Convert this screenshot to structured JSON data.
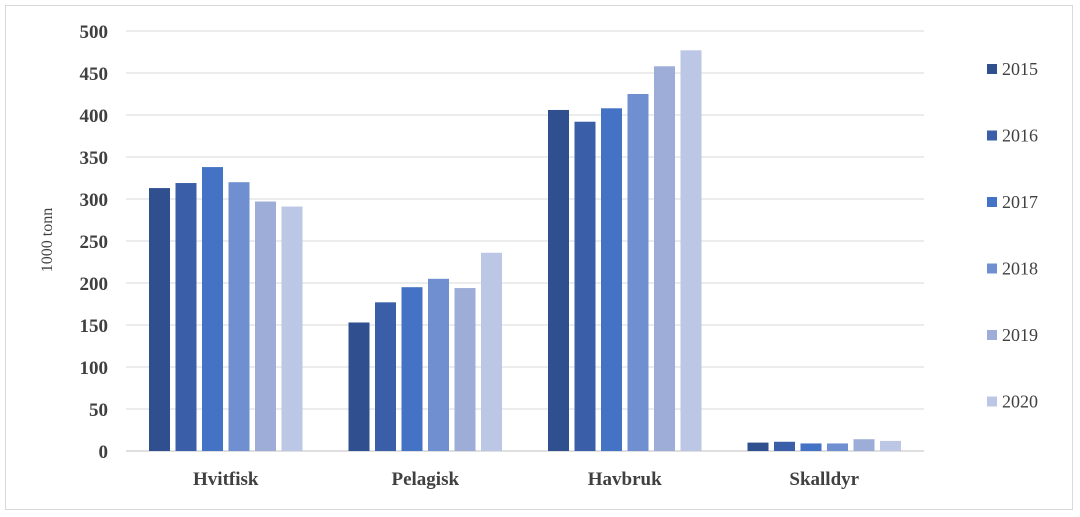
{
  "chart_data": {
    "type": "bar",
    "ylabel": "1000 tonn",
    "xlabel": "",
    "ylim": [
      0,
      500
    ],
    "yticks": [
      0,
      50,
      100,
      150,
      200,
      250,
      300,
      350,
      400,
      450,
      500
    ],
    "grid": true,
    "legend_position": "right",
    "categories": [
      "Hvitfisk",
      "Pelagisk",
      "Havbruk",
      "Skalldyr"
    ],
    "series": [
      {
        "name": "2015",
        "color": "#2f4f8f",
        "values": [
          313,
          153,
          406,
          10
        ]
      },
      {
        "name": "2016",
        "color": "#3a5ea8",
        "values": [
          319,
          177,
          392,
          11
        ]
      },
      {
        "name": "2017",
        "color": "#4472c4",
        "values": [
          338,
          195,
          408,
          9
        ]
      },
      {
        "name": "2018",
        "color": "#6f8fd0",
        "values": [
          320,
          205,
          425,
          9
        ]
      },
      {
        "name": "2019",
        "color": "#9dadd8",
        "values": [
          297,
          194,
          458,
          14
        ]
      },
      {
        "name": "2020",
        "color": "#bcc7e6",
        "values": [
          291,
          236,
          477,
          12
        ]
      }
    ]
  }
}
